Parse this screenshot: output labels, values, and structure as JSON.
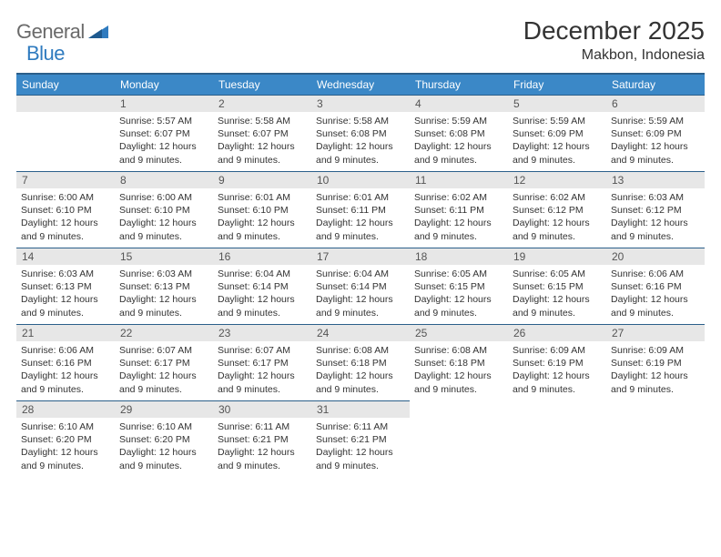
{
  "logo": {
    "part1": "General",
    "part2": "Blue"
  },
  "title": "December 2025",
  "location": "Makbon, Indonesia",
  "colors": {
    "header_bg": "#3b88c7",
    "header_border": "#2b5f8a",
    "daynum_bg": "#e7e7e7",
    "text": "#333333",
    "logo_gray": "#6a6a6a",
    "logo_blue": "#2f7bbf"
  },
  "weekdays": [
    "Sunday",
    "Monday",
    "Tuesday",
    "Wednesday",
    "Thursday",
    "Friday",
    "Saturday"
  ],
  "weeks": [
    [
      {
        "day": "",
        "lines": []
      },
      {
        "day": "1",
        "lines": [
          "Sunrise: 5:57 AM",
          "Sunset: 6:07 PM",
          "Daylight: 12 hours and 9 minutes."
        ]
      },
      {
        "day": "2",
        "lines": [
          "Sunrise: 5:58 AM",
          "Sunset: 6:07 PM",
          "Daylight: 12 hours and 9 minutes."
        ]
      },
      {
        "day": "3",
        "lines": [
          "Sunrise: 5:58 AM",
          "Sunset: 6:08 PM",
          "Daylight: 12 hours and 9 minutes."
        ]
      },
      {
        "day": "4",
        "lines": [
          "Sunrise: 5:59 AM",
          "Sunset: 6:08 PM",
          "Daylight: 12 hours and 9 minutes."
        ]
      },
      {
        "day": "5",
        "lines": [
          "Sunrise: 5:59 AM",
          "Sunset: 6:09 PM",
          "Daylight: 12 hours and 9 minutes."
        ]
      },
      {
        "day": "6",
        "lines": [
          "Sunrise: 5:59 AM",
          "Sunset: 6:09 PM",
          "Daylight: 12 hours and 9 minutes."
        ]
      }
    ],
    [
      {
        "day": "7",
        "lines": [
          "Sunrise: 6:00 AM",
          "Sunset: 6:10 PM",
          "Daylight: 12 hours and 9 minutes."
        ]
      },
      {
        "day": "8",
        "lines": [
          "Sunrise: 6:00 AM",
          "Sunset: 6:10 PM",
          "Daylight: 12 hours and 9 minutes."
        ]
      },
      {
        "day": "9",
        "lines": [
          "Sunrise: 6:01 AM",
          "Sunset: 6:10 PM",
          "Daylight: 12 hours and 9 minutes."
        ]
      },
      {
        "day": "10",
        "lines": [
          "Sunrise: 6:01 AM",
          "Sunset: 6:11 PM",
          "Daylight: 12 hours and 9 minutes."
        ]
      },
      {
        "day": "11",
        "lines": [
          "Sunrise: 6:02 AM",
          "Sunset: 6:11 PM",
          "Daylight: 12 hours and 9 minutes."
        ]
      },
      {
        "day": "12",
        "lines": [
          "Sunrise: 6:02 AM",
          "Sunset: 6:12 PM",
          "Daylight: 12 hours and 9 minutes."
        ]
      },
      {
        "day": "13",
        "lines": [
          "Sunrise: 6:03 AM",
          "Sunset: 6:12 PM",
          "Daylight: 12 hours and 9 minutes."
        ]
      }
    ],
    [
      {
        "day": "14",
        "lines": [
          "Sunrise: 6:03 AM",
          "Sunset: 6:13 PM",
          "Daylight: 12 hours and 9 minutes."
        ]
      },
      {
        "day": "15",
        "lines": [
          "Sunrise: 6:03 AM",
          "Sunset: 6:13 PM",
          "Daylight: 12 hours and 9 minutes."
        ]
      },
      {
        "day": "16",
        "lines": [
          "Sunrise: 6:04 AM",
          "Sunset: 6:14 PM",
          "Daylight: 12 hours and 9 minutes."
        ]
      },
      {
        "day": "17",
        "lines": [
          "Sunrise: 6:04 AM",
          "Sunset: 6:14 PM",
          "Daylight: 12 hours and 9 minutes."
        ]
      },
      {
        "day": "18",
        "lines": [
          "Sunrise: 6:05 AM",
          "Sunset: 6:15 PM",
          "Daylight: 12 hours and 9 minutes."
        ]
      },
      {
        "day": "19",
        "lines": [
          "Sunrise: 6:05 AM",
          "Sunset: 6:15 PM",
          "Daylight: 12 hours and 9 minutes."
        ]
      },
      {
        "day": "20",
        "lines": [
          "Sunrise: 6:06 AM",
          "Sunset: 6:16 PM",
          "Daylight: 12 hours and 9 minutes."
        ]
      }
    ],
    [
      {
        "day": "21",
        "lines": [
          "Sunrise: 6:06 AM",
          "Sunset: 6:16 PM",
          "Daylight: 12 hours and 9 minutes."
        ]
      },
      {
        "day": "22",
        "lines": [
          "Sunrise: 6:07 AM",
          "Sunset: 6:17 PM",
          "Daylight: 12 hours and 9 minutes."
        ]
      },
      {
        "day": "23",
        "lines": [
          "Sunrise: 6:07 AM",
          "Sunset: 6:17 PM",
          "Daylight: 12 hours and 9 minutes."
        ]
      },
      {
        "day": "24",
        "lines": [
          "Sunrise: 6:08 AM",
          "Sunset: 6:18 PM",
          "Daylight: 12 hours and 9 minutes."
        ]
      },
      {
        "day": "25",
        "lines": [
          "Sunrise: 6:08 AM",
          "Sunset: 6:18 PM",
          "Daylight: 12 hours and 9 minutes."
        ]
      },
      {
        "day": "26",
        "lines": [
          "Sunrise: 6:09 AM",
          "Sunset: 6:19 PM",
          "Daylight: 12 hours and 9 minutes."
        ]
      },
      {
        "day": "27",
        "lines": [
          "Sunrise: 6:09 AM",
          "Sunset: 6:19 PM",
          "Daylight: 12 hours and 9 minutes."
        ]
      }
    ],
    [
      {
        "day": "28",
        "lines": [
          "Sunrise: 6:10 AM",
          "Sunset: 6:20 PM",
          "Daylight: 12 hours and 9 minutes."
        ]
      },
      {
        "day": "29",
        "lines": [
          "Sunrise: 6:10 AM",
          "Sunset: 6:20 PM",
          "Daylight: 12 hours and 9 minutes."
        ]
      },
      {
        "day": "30",
        "lines": [
          "Sunrise: 6:11 AM",
          "Sunset: 6:21 PM",
          "Daylight: 12 hours and 9 minutes."
        ]
      },
      {
        "day": "31",
        "lines": [
          "Sunrise: 6:11 AM",
          "Sunset: 6:21 PM",
          "Daylight: 12 hours and 9 minutes."
        ]
      },
      {
        "day": "",
        "lines": []
      },
      {
        "day": "",
        "lines": []
      },
      {
        "day": "",
        "lines": []
      }
    ]
  ]
}
